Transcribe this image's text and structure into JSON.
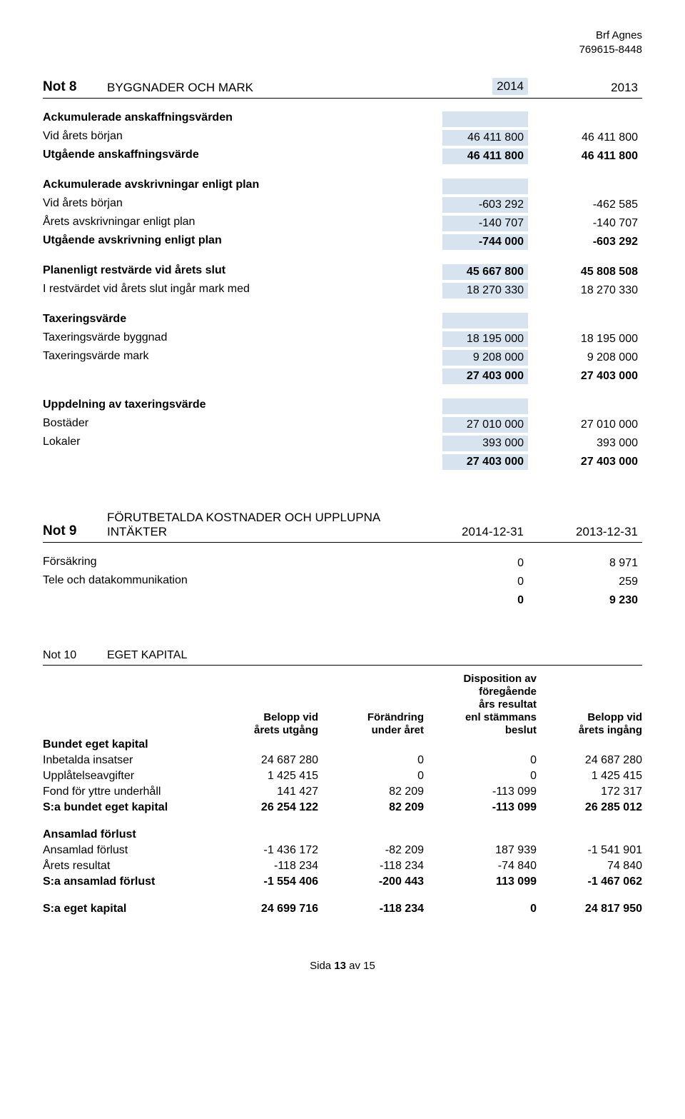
{
  "header": {
    "company": "Brf Agnes",
    "orgnr": "769615-8448"
  },
  "not8": {
    "label": "Not 8",
    "title": "BYGGNADER OCH MARK",
    "year_a": "2014",
    "year_b": "2013",
    "sec1_title": "Ackumulerade anskaffningsvärden",
    "rows1": [
      {
        "l": "Vid årets början",
        "a": "46 411 800",
        "b": "46 411 800"
      }
    ],
    "sum1": {
      "l": "Utgående anskaffningsvärde",
      "a": "46 411 800",
      "b": "46 411 800"
    },
    "sec2_title": "Ackumulerade avskrivningar enligt plan",
    "rows2": [
      {
        "l": "Vid årets början",
        "a": "-603 292",
        "b": "-462 585"
      },
      {
        "l": "Årets avskrivningar enligt plan",
        "a": "-140 707",
        "b": "-140 707"
      }
    ],
    "sum2": {
      "l": "Utgående avskrivning enligt plan",
      "a": "-744 000",
      "b": "-603 292"
    },
    "rest": {
      "l": "Planenligt restvärde vid årets slut",
      "a": "45 667 800",
      "b": "45 808 508"
    },
    "mark": {
      "l": "I restvärdet vid årets slut ingår mark med",
      "a": "18 270 330",
      "b": "18 270 330"
    },
    "tax_title": "Taxeringsvärde",
    "tax_rows": [
      {
        "l": "Taxeringsvärde byggnad",
        "a": "18 195 000",
        "b": "18 195 000"
      },
      {
        "l": "Taxeringsvärde mark",
        "a": "9 208 000",
        "b": "9 208 000"
      }
    ],
    "tax_sum": {
      "a": "27 403 000",
      "b": "27 403 000"
    },
    "upp_title": "Uppdelning av taxeringsvärde",
    "upp_rows": [
      {
        "l": "Bostäder",
        "a": "27 010 000",
        "b": "27 010 000"
      },
      {
        "l": "Lokaler",
        "a": "393 000",
        "b": "393 000"
      }
    ],
    "upp_sum": {
      "a": "27 403 000",
      "b": "27 403 000"
    }
  },
  "not9": {
    "label": "Not 9",
    "title": "FÖRUTBETALDA KOSTNADER OCH UPPLUPNA INTÄKTER",
    "year_a": "2014-12-31",
    "year_b": "2013-12-31",
    "rows": [
      {
        "l": "Försäkring",
        "a": "0",
        "b": "8 971"
      },
      {
        "l": "Tele och datakommunikation",
        "a": "0",
        "b": "259"
      }
    ],
    "sum": {
      "a": "0",
      "b": "9 230"
    }
  },
  "not10": {
    "label": "Not 10",
    "title": "EGET KAPITAL",
    "cols": {
      "c1": "",
      "c2": "Belopp vid\nårets utgång",
      "c3": "Förändring\nunder året",
      "c4": "Disposition av\nföregående\nårs resultat\nenl stämmans\nbeslut",
      "c5": "Belopp vid\nårets ingång"
    },
    "sec1_title": "Bundet eget kapital",
    "rows1": [
      {
        "l": "Inbetalda insatser",
        "c2": "24 687 280",
        "c3": "0",
        "c4": "0",
        "c5": "24 687 280"
      },
      {
        "l": "Upplåtelseavgifter",
        "c2": "1 425 415",
        "c3": "0",
        "c4": "0",
        "c5": "1 425 415"
      },
      {
        "l": "Fond för yttre underhåll",
        "c2": "141 427",
        "c3": "82 209",
        "c4": "-113 099",
        "c5": "172 317"
      }
    ],
    "sum1": {
      "l": "S:a bundet eget kapital",
      "c2": "26 254 122",
      "c3": "82 209",
      "c4": "-113 099",
      "c5": "26 285 012"
    },
    "sec2_title": "Ansamlad förlust",
    "rows2": [
      {
        "l": "Ansamlad förlust",
        "c2": "-1 436 172",
        "c3": "-82 209",
        "c4": "187 939",
        "c5": "-1 541 901"
      },
      {
        "l": "Årets resultat",
        "c2": "-118 234",
        "c3": "-118 234",
        "c4": "-74 840",
        "c5": "74 840"
      }
    ],
    "sum2": {
      "l": "S:a ansamlad förlust",
      "c2": "-1 554 406",
      "c3": "-200 443",
      "c4": "113 099",
      "c5": "-1 467 062"
    },
    "total": {
      "l": "S:a eget kapital",
      "c2": "24 699 716",
      "c3": "-118 234",
      "c4": "0",
      "c5": "24 817 950"
    }
  },
  "footer": {
    "text_a": "Sida ",
    "page": "13",
    "text_b": " av 15"
  }
}
